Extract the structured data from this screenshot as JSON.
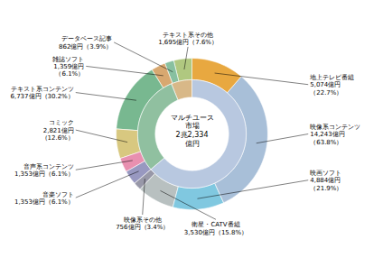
{
  "chart_data": {
    "type": "pie",
    "title": "マルチユース\n市場\n2兆2,334\n億円",
    "series": [
      {
        "categories": [
          "地上テレビ番組\n5,074億円\n（22.7%）",
          "映像系コンテンツ\n14,243億円\n（63.8%）",
          "映画ソフト\n4,884億円\n（21.9%）",
          "衛星・CATV番組\n3,530億円（15.8%）",
          "映像系その他\n756億円（3.4%）",
          "音楽ソフト\n1,353億円（6.1%）",
          "音声系コンテンツ\n1,353億円（6.1%）",
          "コミック\n2,821億円\n（12.6%）",
          "テキスト系コンテンツ\n6,737億円（30.2%）",
          "雑誌ソフト\n1,359億円\n（6.1%）",
          "データベース記事\n862億円（3.9%）",
          "テキスト系その他\n1,695億円（7.6%）"
        ],
        "values": [
          22.7,
          63.8,
          21.9,
          15.8,
          3.4,
          6.1,
          6.1,
          12.6,
          30.2,
          6.1,
          3.9,
          7.6
        ],
        "colors": [
          "#E8A840",
          "#A8BFD8",
          "#80C8E0",
          "#B8C0C0",
          "#9898A8",
          "#9898C0",
          "#E890B0",
          "#D8C880",
          "#78B890",
          "#D8A870",
          "#88C0A0",
          "#B0C880"
        ]
      },
      {
        "values": [
          63.8,
          30.2,
          6.1
        ],
        "colors": [
          "#B8C8E0",
          "#90C0A0",
          "#D8B888"
        ]
      }
    ]
  }
}
